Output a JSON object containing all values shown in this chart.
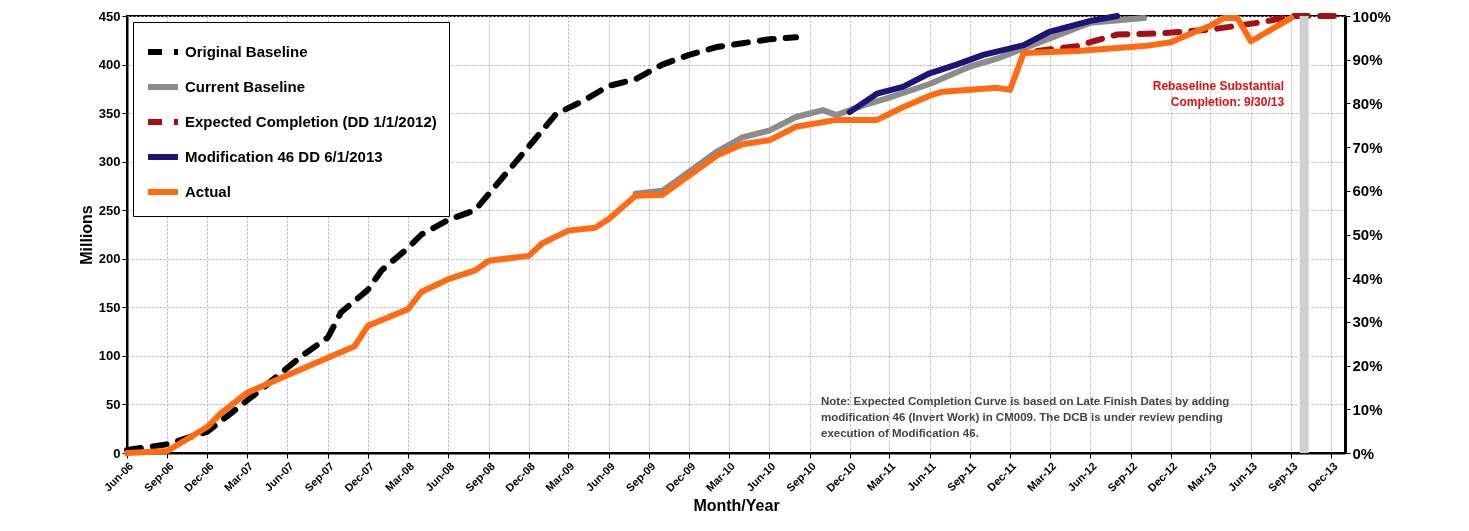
{
  "chart_data": {
    "type": "line",
    "xlabel": "Month/Year",
    "ylabel": "Millions",
    "xlim": [
      "2006-06",
      "2014-01"
    ],
    "xticks": [
      {
        "value": "2006-06",
        "label": "Jun-06"
      },
      {
        "value": "2006-09",
        "label": "Sep-06"
      },
      {
        "value": "2006-12",
        "label": "Dec-06"
      },
      {
        "value": "2007-03",
        "label": "Mar-07"
      },
      {
        "value": "2007-06",
        "label": "Jun-07"
      },
      {
        "value": "2007-09",
        "label": "Sep-07"
      },
      {
        "value": "2007-12",
        "label": "Dec-07"
      },
      {
        "value": "2008-03",
        "label": "Mar-08"
      },
      {
        "value": "2008-06",
        "label": "Jun-08"
      },
      {
        "value": "2008-09",
        "label": "Sep-08"
      },
      {
        "value": "2008-12",
        "label": "Dec-08"
      },
      {
        "value": "2009-03",
        "label": "Mar-09"
      },
      {
        "value": "2009-06",
        "label": "Jun-09"
      },
      {
        "value": "2009-09",
        "label": "Sep-09"
      },
      {
        "value": "2009-12",
        "label": "Dec-09"
      },
      {
        "value": "2010-03",
        "label": "Mar-10"
      },
      {
        "value": "2010-06",
        "label": "Jun-10"
      },
      {
        "value": "2010-09",
        "label": "Sep-10"
      },
      {
        "value": "2010-12",
        "label": "Dec-10"
      },
      {
        "value": "2011-03",
        "label": "Mar-11"
      },
      {
        "value": "2011-06",
        "label": "Jun-11"
      },
      {
        "value": "2011-09",
        "label": "Sep-11"
      },
      {
        "value": "2011-12",
        "label": "Dec-11"
      },
      {
        "value": "2012-03",
        "label": "Mar-12"
      },
      {
        "value": "2012-06",
        "label": "Jun-12"
      },
      {
        "value": "2012-09",
        "label": "Sep-12"
      },
      {
        "value": "2012-12",
        "label": "Dec-12"
      },
      {
        "value": "2013-03",
        "label": "Mar-13"
      },
      {
        "value": "2013-06",
        "label": "Jun-13"
      },
      {
        "value": "2013-09",
        "label": "Sep-13"
      },
      {
        "value": "2013-12",
        "label": "Dec-13"
      }
    ],
    "ylim": [
      0,
      450
    ],
    "yticks": [
      0,
      50,
      100,
      150,
      200,
      250,
      300,
      350,
      400,
      450
    ],
    "y2lim": [
      0,
      100
    ],
    "y2ticks": [
      {
        "value": 0,
        "label": "0%"
      },
      {
        "value": 10,
        "label": "10%"
      },
      {
        "value": 20,
        "label": "20%"
      },
      {
        "value": 30,
        "label": "30%"
      },
      {
        "value": 40,
        "label": "40%"
      },
      {
        "value": 50,
        "label": "50%"
      },
      {
        "value": 60,
        "label": "60%"
      },
      {
        "value": 70,
        "label": "70%"
      },
      {
        "value": 80,
        "label": "80%"
      },
      {
        "value": 90,
        "label": "90%"
      },
      {
        "value": 100,
        "label": "100%"
      }
    ],
    "grid": true,
    "legend": "top left",
    "marker": "none",
    "series": [
      {
        "name": "Original Baseline",
        "color": "#000000",
        "line_style": "dashed",
        "x": [
          "2006-06",
          "2006-09",
          "2006-12",
          "2007-02",
          "2007-04",
          "2007-07",
          "2007-09",
          "2007-10",
          "2007-12",
          "2008-01",
          "2008-03",
          "2008-04",
          "2008-06",
          "2008-08",
          "2009-02",
          "2009-04",
          "2009-06",
          "2009-08",
          "2009-10",
          "2009-12",
          "2010-02",
          "2010-04",
          "2010-06",
          "2010-08"
        ],
        "values": [
          3,
          9,
          22,
          44,
          65,
          99,
          119,
          145,
          168,
          188,
          211,
          225,
          240,
          250,
          349,
          362,
          378,
          385,
          400,
          410,
          418,
          422,
          426,
          428
        ]
      },
      {
        "name": "Current Baseline",
        "color": "#8c8c8c",
        "line_style": "solid",
        "x": [
          "2009-08",
          "2009-10",
          "2009-11",
          "2010-02",
          "2010-04",
          "2010-06",
          "2010-08",
          "2010-10",
          "2010-11",
          "2011-01",
          "2011-03",
          "2011-06",
          "2011-09",
          "2011-11",
          "2012-02",
          "2012-06",
          "2012-10"
        ],
        "values": [
          267,
          270,
          280,
          310,
          325,
          332,
          346,
          353,
          348,
          358,
          366,
          380,
          398,
          406,
          422,
          443,
          448
        ]
      },
      {
        "name": "Expected Completion (DD 1/1/2012)",
        "color": "#a50f15",
        "line_style": "dashed",
        "x": [
          "2012-02",
          "2012-05",
          "2012-08",
          "2012-11",
          "2013-03",
          "2013-07",
          "2013-09",
          "2014-01"
        ],
        "values": [
          414,
          419,
          431,
          432,
          436,
          444,
          450,
          450
        ]
      },
      {
        "name": "Modification 46 DD 6/1/2013",
        "color": "#1c1478",
        "line_style": "solid",
        "x": [
          "2010-12",
          "2011-02",
          "2011-04",
          "2011-06",
          "2011-08",
          "2011-10",
          "2012-01",
          "2012-03",
          "2012-06",
          "2012-08"
        ],
        "values": [
          351,
          370,
          377,
          391,
          400,
          410,
          420,
          434,
          445,
          450
        ]
      },
      {
        "name": "Actual",
        "color": "#ff6a13",
        "line_style": "solid",
        "x": [
          "2006-06",
          "2006-09",
          "2006-12",
          "2007-01",
          "2007-03",
          "2007-06",
          "2007-09",
          "2007-11",
          "2007-12",
          "2008-03",
          "2008-04",
          "2008-06",
          "2008-08",
          "2008-09",
          "2008-12",
          "2009-01",
          "2009-03",
          "2009-05",
          "2009-06",
          "2009-08",
          "2009-10",
          "2009-11",
          "2010-02",
          "2010-04",
          "2010-06",
          "2010-08",
          "2010-11",
          "2011-02",
          "2011-04",
          "2011-06",
          "2011-07",
          "2011-11",
          "2011-12",
          "2012-01",
          "2012-05",
          "2012-10",
          "2012-12",
          "2013-02",
          "2013-03",
          "2013-04",
          "2013-05",
          "2013-06",
          "2013-09"
        ],
        "values": [
          0,
          2,
          27,
          41,
          62,
          80,
          98,
          110,
          131,
          148,
          166,
          179,
          188,
          198,
          203,
          216,
          229,
          232,
          241,
          265,
          266,
          276,
          306,
          318,
          322,
          336,
          343,
          343,
          356,
          368,
          372,
          376,
          374,
          412,
          414,
          419,
          423,
          435,
          440,
          448,
          448,
          424,
          448
        ]
      }
    ],
    "ref_lines": [
      {
        "axis": "x",
        "value": "2013-09-30",
        "label": "Rebaseline Substantial Completion: 9/30/13",
        "color": "#d0d0d0"
      }
    ],
    "annotations": [
      "Note: Expected Completion Curve is based on Late Finish Dates by adding modification 46 (Invert Work) in CM009. The DCB is under review pending execution of Modification 46."
    ]
  }
}
